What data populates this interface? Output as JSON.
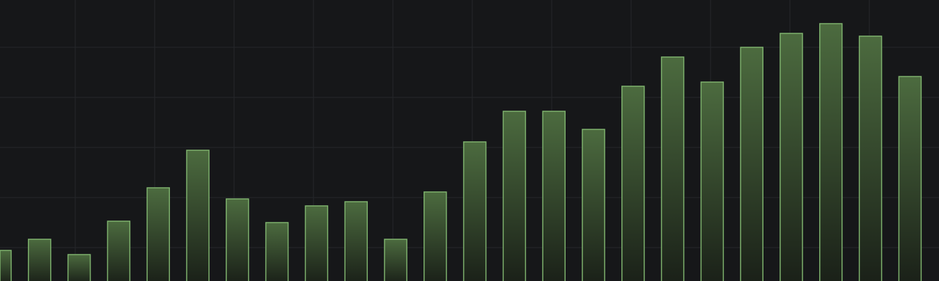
{
  "chart_data": {
    "type": "bar",
    "title": "",
    "xlabel": "",
    "ylabel": "",
    "values": [
      44,
      60,
      38,
      86,
      134,
      188,
      118,
      84,
      108,
      114,
      60,
      128,
      200,
      244,
      244,
      218,
      280,
      322,
      286,
      336,
      356,
      370,
      352,
      294
    ],
    "ylim": [
      0,
      404
    ],
    "grid": true,
    "legend": "none",
    "colors": {
      "background": "#161719",
      "grid": "#25272b",
      "bar_stroke": "#7eb26d",
      "bar_fill_top": "#4c6b3f",
      "bar_fill_bottom": "#1a2018"
    }
  }
}
